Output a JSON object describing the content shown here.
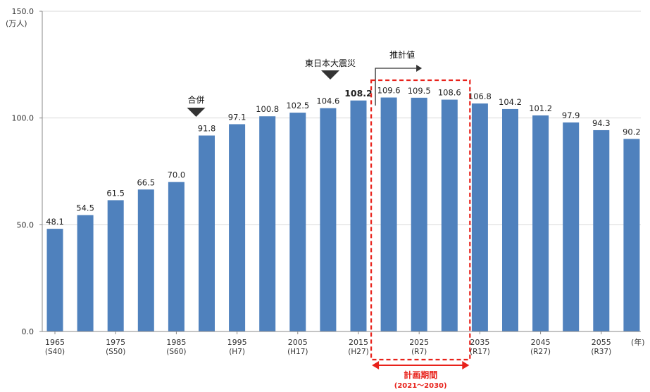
{
  "chart_data": {
    "type": "bar",
    "yunit": "(万人)",
    "xunit": "(年)",
    "ylim": [
      0,
      150
    ],
    "yticks": [
      "0.0",
      "50.0",
      "100.0",
      "150.0"
    ],
    "ytick_values": [
      0,
      50,
      100,
      150
    ],
    "grid": true,
    "values": [
      48.1,
      54.5,
      61.5,
      66.5,
      70.0,
      91.8,
      97.1,
      100.8,
      102.5,
      104.6,
      108.2,
      109.6,
      109.5,
      108.6,
      106.8,
      104.2,
      101.2,
      97.9,
      94.3,
      90.2
    ],
    "value_labels": [
      "48.1",
      "54.5",
      "61.5",
      "66.5",
      "70.0",
      "91.8",
      "97.1",
      "100.8",
      "102.5",
      "104.6",
      "108.2",
      "109.6",
      "109.5",
      "108.6",
      "106.8",
      "104.2",
      "101.2",
      "97.9",
      "94.3",
      "90.2"
    ],
    "highlight_label_index": 10,
    "bar_color": "#4f81bd",
    "tick_labels": [
      {
        "index": 0,
        "year": "1965",
        "era": "(S40)"
      },
      {
        "index": 2,
        "year": "1975",
        "era": "(S50)"
      },
      {
        "index": 4,
        "year": "1985",
        "era": "(S60)"
      },
      {
        "index": 6,
        "year": "1995",
        "era": "(H7)"
      },
      {
        "index": 8,
        "year": "2005",
        "era": "(H17)"
      },
      {
        "index": 10,
        "year": "2015",
        "era": "(H27)"
      },
      {
        "index": 12,
        "year": "2025",
        "era": "(R7)"
      },
      {
        "index": 14,
        "year": "2035",
        "era": "(R17)"
      },
      {
        "index": 16,
        "year": "2045",
        "era": "(R27)"
      },
      {
        "index": 18,
        "year": "2055",
        "era": "(R37)"
      }
    ],
    "annotations": {
      "merger": {
        "label": "合併",
        "at_index": 5
      },
      "earthquake": {
        "label": "東日本大震災",
        "at_index": 10
      },
      "estimate": {
        "label": "推計値",
        "from_index": 11
      },
      "plan_period": {
        "label": "計画期間",
        "range": "(2021～2030)",
        "from_index": 11,
        "to_index": 13,
        "color": "#e8211a"
      }
    }
  }
}
